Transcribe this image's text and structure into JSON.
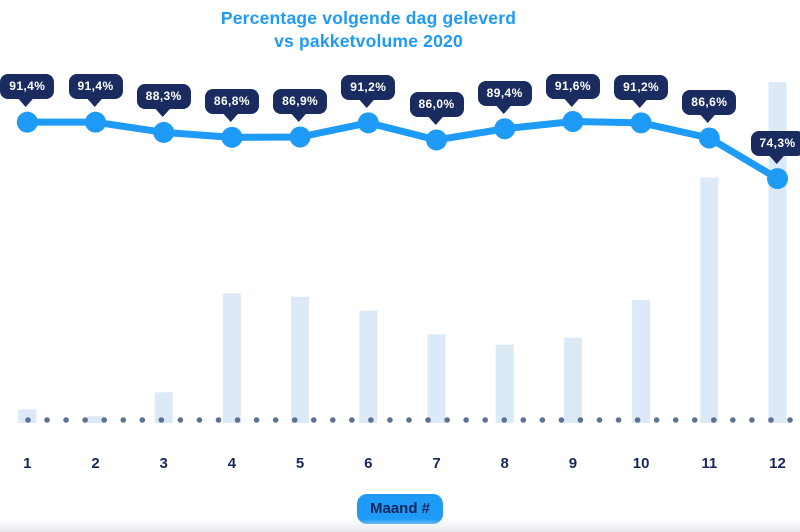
{
  "title": {
    "line1": "Percentage volgende dag geleverd",
    "line2": "vs pakketvolume 2020"
  },
  "xaxis": {
    "title": "Maand #",
    "labels": [
      "1",
      "2",
      "3",
      "4",
      "5",
      "6",
      "7",
      "8",
      "9",
      "10",
      "11",
      "12"
    ]
  },
  "chart_data": {
    "type": "line",
    "title": "Percentage volgende dag geleverd vs pakketvolume 2020",
    "xlabel": "Maand #",
    "ylabel": "",
    "categories": [
      1,
      2,
      3,
      4,
      5,
      6,
      7,
      8,
      9,
      10,
      11,
      12
    ],
    "legend_position": "none",
    "grid": false,
    "series": [
      {
        "name": "Percentage volgende dag geleverd",
        "type": "line",
        "unit": "%",
        "values": [
          91.4,
          91.4,
          88.3,
          86.8,
          86.9,
          91.2,
          86.0,
          89.4,
          91.6,
          91.2,
          86.6,
          74.3
        ],
        "labels": [
          "91,4%",
          "91,4%",
          "88,3%",
          "86,8%",
          "86,9%",
          "91,2%",
          "86,0%",
          "89,4%",
          "91,6%",
          "91,2%",
          "86,6%",
          "74,3%"
        ]
      },
      {
        "name": "Pakketvolume 2020",
        "type": "bar",
        "unit": "relative volume (estimated, max month = 100)",
        "values": [
          4,
          2,
          9,
          38,
          37,
          33,
          26,
          23,
          25,
          36,
          72,
          100
        ]
      }
    ]
  },
  "colors": {
    "accent_blue": "#1e9af7",
    "navy": "#1a2c5f",
    "label_navy": "#16295c",
    "bar_fill": "#dce9f7",
    "baseline_dot": "#5d7193",
    "tooltip_text": "#ffffff"
  }
}
